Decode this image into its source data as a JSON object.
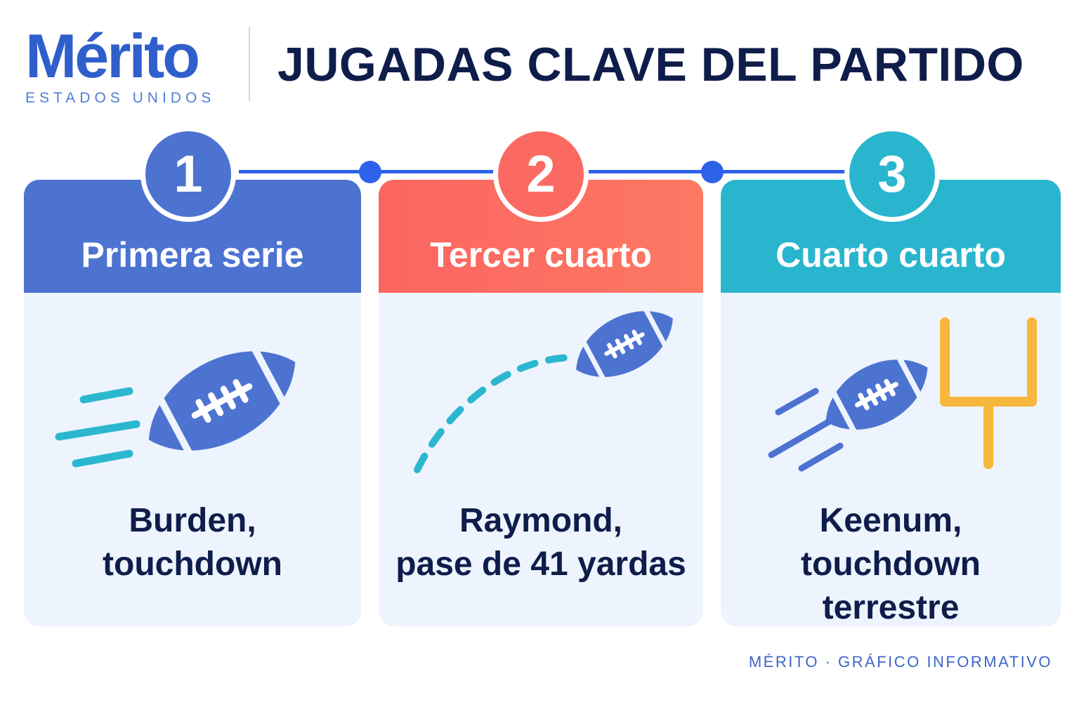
{
  "brand": {
    "name": "Mérito",
    "subtitle": "ESTADOS UNIDOS"
  },
  "title": "JUGADAS CLAVE DEL PARTIDO",
  "colors": {
    "navy": "#0f1d4b",
    "blue": "#4d73d1",
    "coral": "#fb6a62",
    "teal": "#2ab5cf",
    "connector": "#2d63e8",
    "goalpost": "#f7b73d",
    "card_background": "#eef4fd"
  },
  "plays": [
    {
      "number": "1",
      "header": "Primera serie",
      "description_line1": "Burden,",
      "description_line2": "touchdown",
      "icon": "football-speed-icon"
    },
    {
      "number": "2",
      "header": "Tercer cuarto",
      "description_line1": "Raymond,",
      "description_line2": "pase de 41 yardas",
      "icon": "football-pass-arc-icon"
    },
    {
      "number": "3",
      "header": "Cuarto cuarto",
      "description_line1": "Keenum,",
      "description_line2": "touchdown terrestre",
      "icon": "football-goalpost-icon"
    }
  ],
  "footer": "MÉRITO · GRÁFICO INFORMATIVO"
}
